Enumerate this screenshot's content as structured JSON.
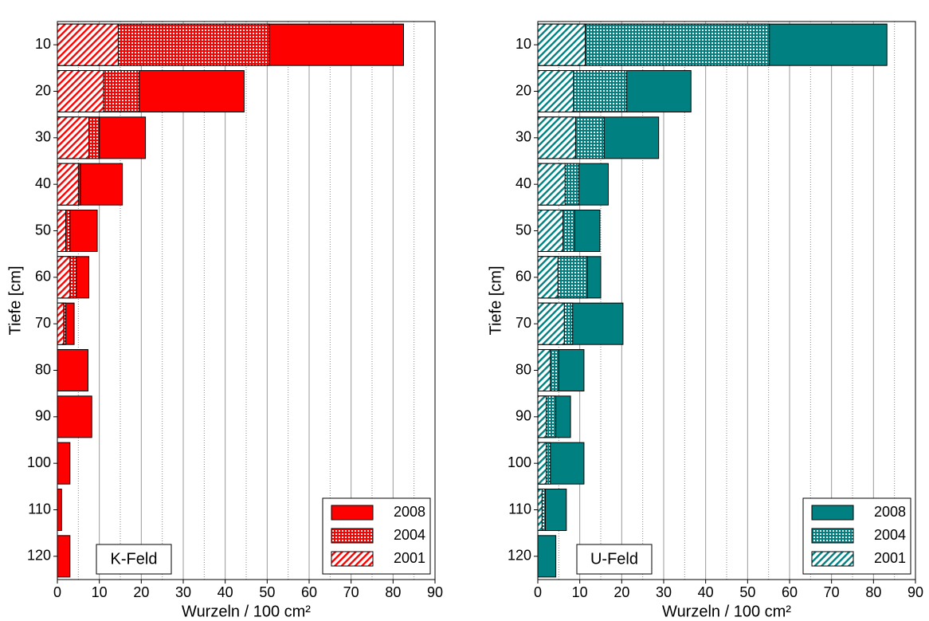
{
  "chart_data": [
    {
      "type": "bar",
      "orientation": "horizontal",
      "annotation": "K-Feld",
      "xlabel": "Wurzeln / 100 cm²",
      "ylabel": "Tiefe [cm]",
      "categories": [
        "10",
        "20",
        "30",
        "40",
        "50",
        "60",
        "70",
        "80",
        "90",
        "100",
        "110",
        "120"
      ],
      "series": [
        {
          "name": "2008",
          "color": "#ff0000",
          "pattern": "solid",
          "values": [
            82.5,
            44.5,
            21,
            15.5,
            9.5,
            7.5,
            4,
            7.3,
            8.2,
            3,
            1,
            3
          ]
        },
        {
          "name": "2004",
          "color": "#ff0000",
          "pattern": "grid",
          "values": [
            50.5,
            19.5,
            10,
            5.5,
            3,
            4.5,
            2,
            0,
            0,
            0,
            0,
            0
          ]
        },
        {
          "name": "2001",
          "color": "#ff0000",
          "pattern": "hatch",
          "values": [
            14.5,
            11,
            7.5,
            5,
            2,
            3,
            1.5,
            0,
            0,
            0,
            0,
            0
          ]
        }
      ],
      "xlim": [
        0,
        90
      ],
      "xticks": [
        0,
        10,
        20,
        30,
        40,
        50,
        60,
        70,
        80,
        90
      ],
      "minor_xticks": [
        5,
        15,
        25,
        35,
        45,
        55,
        65,
        75,
        85
      ],
      "grid": true,
      "legend": "lower-right"
    },
    {
      "type": "bar",
      "orientation": "horizontal",
      "annotation": "U-Feld",
      "xlabel": "Wurzeln / 100 cm²",
      "ylabel": "Tiefe [cm]",
      "categories": [
        "10",
        "20",
        "30",
        "40",
        "50",
        "60",
        "70",
        "80",
        "90",
        "100",
        "110",
        "120"
      ],
      "series": [
        {
          "name": "2008",
          "color": "#008080",
          "pattern": "solid",
          "values": [
            83.2,
            36.5,
            28.8,
            16.8,
            14.8,
            15,
            20.3,
            11,
            7.8,
            11,
            6.8,
            4.3
          ]
        },
        {
          "name": "2004",
          "color": "#008080",
          "pattern": "grid",
          "values": [
            55.2,
            21.2,
            15.8,
            9.8,
            8.8,
            11.8,
            8.3,
            5,
            4.3,
            3,
            1.8,
            0
          ]
        },
        {
          "name": "2001",
          "color": "#008080",
          "pattern": "hatch",
          "values": [
            11.3,
            8.5,
            9,
            6.5,
            6,
            4.8,
            6.3,
            3,
            2,
            2,
            1,
            0
          ]
        }
      ],
      "xlim": [
        0,
        90
      ],
      "xticks": [
        0,
        10,
        20,
        30,
        40,
        50,
        60,
        70,
        80,
        90
      ],
      "minor_xticks": [
        5,
        15,
        25,
        35,
        45,
        55,
        65,
        75,
        85
      ],
      "grid": true,
      "legend": "lower-right"
    }
  ]
}
